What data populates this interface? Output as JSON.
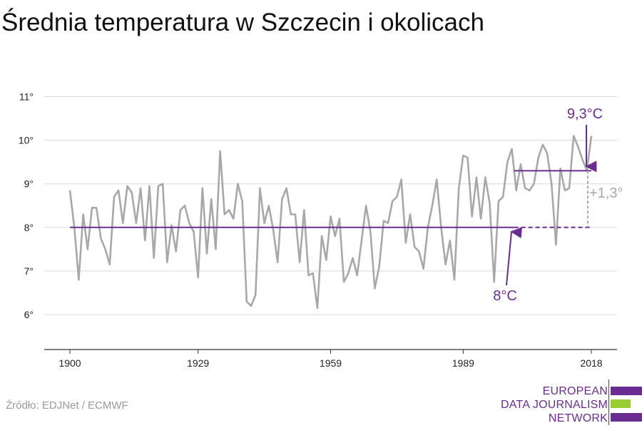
{
  "title": "Średnia temperatura w Szczecin i okolicach",
  "source": "Źródło: EDJNet / ECMWF",
  "logo": {
    "lines": [
      "EUROPEAN",
      "DATA JOURNALISM",
      "NETWORK"
    ],
    "colors": {
      "purple": "#6b2c91",
      "green": "#9acd32"
    }
  },
  "colors": {
    "series": "#a8a8a8",
    "accent": "#6b2c91",
    "grid": "#d9d9d9",
    "axis": "#333333",
    "delta": "#a8a8a8"
  },
  "chart_data": {
    "type": "line",
    "title": "Średnia temperatura w Szczecin i okolicach",
    "xlabel": "",
    "ylabel": "",
    "xlim": [
      1900,
      2018
    ],
    "ylim": [
      5.2,
      11.3
    ],
    "x_ticks": [
      1900,
      1929,
      1959,
      1989,
      2018
    ],
    "y_ticks": [
      6,
      7,
      8,
      9,
      10,
      11
    ],
    "y_tick_labels": [
      "6°",
      "7°",
      "8°",
      "9°",
      "10°",
      "11°"
    ],
    "grid": true,
    "series": [
      {
        "x": [
          1900,
          1901,
          1902,
          1903,
          1904,
          1905,
          1906,
          1907,
          1908,
          1909,
          1910,
          1911,
          1912,
          1913,
          1914,
          1915,
          1916,
          1917,
          1918,
          1919,
          1920,
          1921,
          1922,
          1923,
          1924,
          1925,
          1926,
          1927,
          1928,
          1929,
          1930,
          1931,
          1932,
          1933,
          1934,
          1935,
          1936,
          1937,
          1938,
          1939,
          1940,
          1941,
          1942,
          1943,
          1944,
          1945,
          1946,
          1947,
          1948,
          1949,
          1950,
          1951,
          1952,
          1953,
          1954,
          1955,
          1956,
          1957,
          1958,
          1959,
          1960,
          1961,
          1962,
          1963,
          1964,
          1965,
          1966,
          1967,
          1968,
          1969,
          1970,
          1971,
          1972,
          1973,
          1974,
          1975,
          1976,
          1977,
          1978,
          1979,
          1980,
          1981,
          1982,
          1983,
          1984,
          1985,
          1986,
          1987,
          1988,
          1989,
          1990,
          1991,
          1992,
          1993,
          1994,
          1995,
          1996,
          1997,
          1998,
          1999,
          2000,
          2001,
          2002,
          2003,
          2004,
          2005,
          2006,
          2007,
          2008,
          2009,
          2010,
          2011,
          2012,
          2013,
          2014,
          2015,
          2016,
          2017,
          2018
        ],
        "values": [
          8.85,
          8.0,
          6.8,
          8.3,
          7.5,
          8.45,
          8.45,
          7.75,
          7.5,
          7.15,
          8.7,
          8.85,
          8.1,
          8.95,
          8.8,
          8.1,
          8.9,
          7.7,
          8.95,
          7.3,
          8.95,
          9.0,
          7.2,
          8.05,
          7.45,
          8.4,
          8.5,
          8.1,
          7.9,
          6.85,
          8.9,
          7.4,
          8.65,
          7.5,
          9.75,
          8.3,
          8.4,
          8.2,
          9.0,
          8.6,
          6.3,
          6.2,
          6.45,
          8.9,
          8.1,
          8.5,
          7.95,
          7.2,
          8.65,
          8.9,
          8.3,
          8.3,
          7.2,
          8.4,
          6.9,
          6.95,
          6.15,
          7.8,
          7.25,
          8.25,
          7.8,
          8.2,
          6.75,
          6.95,
          7.3,
          6.9,
          7.7,
          8.5,
          7.9,
          6.6,
          7.1,
          8.15,
          8.1,
          8.6,
          8.7,
          9.1,
          7.65,
          8.3,
          7.55,
          7.45,
          7.05,
          8.0,
          8.5,
          9.1,
          8.0,
          7.15,
          7.7,
          6.8,
          8.9,
          9.65,
          9.6,
          8.25,
          9.15,
          8.2,
          9.15,
          8.55,
          6.75,
          8.6,
          8.7,
          9.5,
          9.8,
          8.85,
          9.45,
          8.9,
          8.85,
          9.0,
          9.6,
          9.9,
          9.7,
          9.0,
          7.6,
          9.35,
          8.85,
          8.9,
          10.1,
          9.85,
          9.55,
          9.3,
          10.1
        ]
      }
    ],
    "baseline": {
      "value": 8.0,
      "label": "8°C",
      "x_start": 1900,
      "x_end": 1989
    },
    "recent": {
      "value": 9.3,
      "label": "9,3°C",
      "x_start": 1989,
      "x_end": 2018
    },
    "delta_label": "+1,3°"
  }
}
